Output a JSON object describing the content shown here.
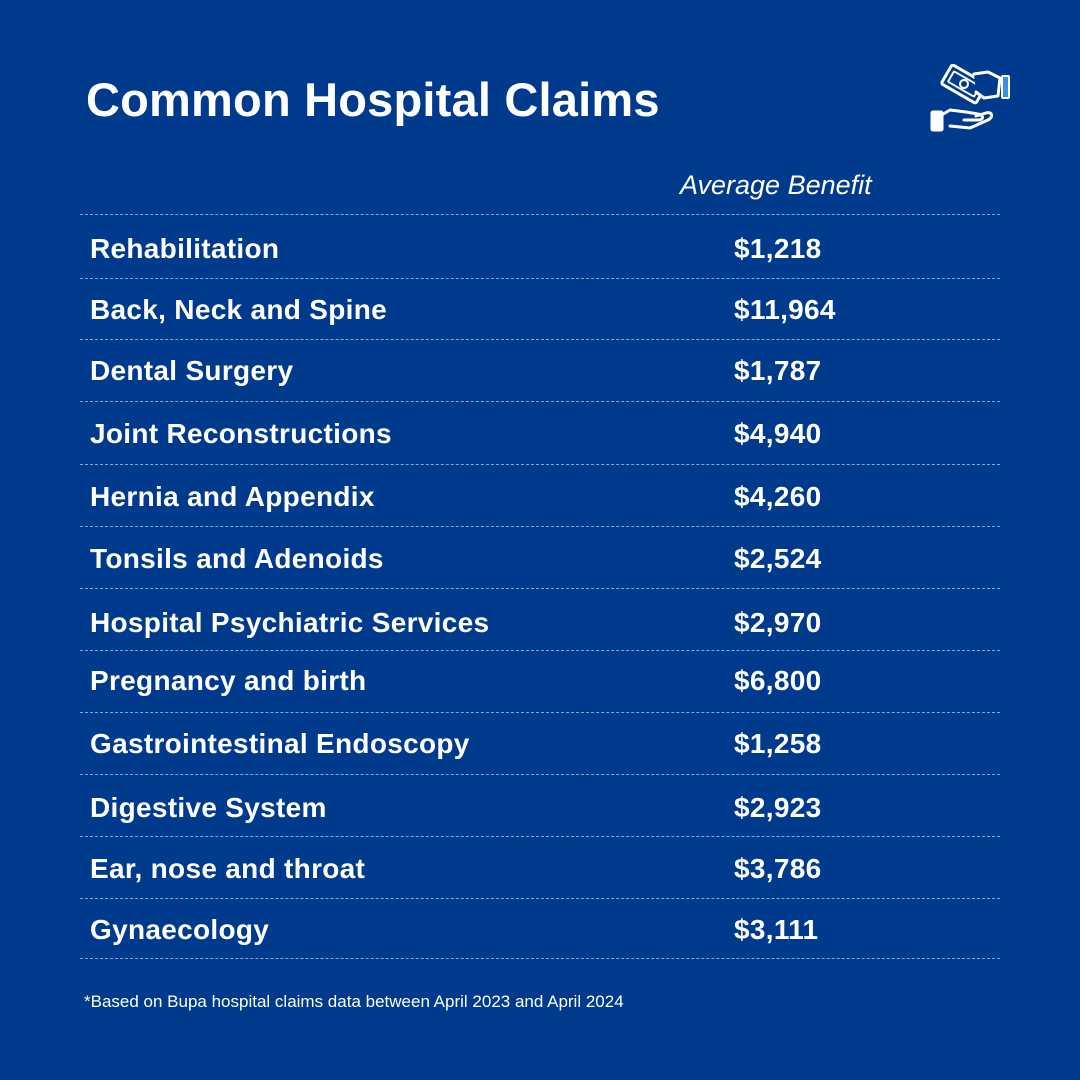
{
  "title": "Common Hospital Claims",
  "column_header": "Average Benefit",
  "icon": "money-in-hand-icon",
  "colors": {
    "background": "#003a8c",
    "text": "#ffffff",
    "icon_accent": "#3a8fe0"
  },
  "chart_data": {
    "type": "table",
    "title": "Common Hospital Claims",
    "columns": [
      "",
      "Average Benefit"
    ],
    "rows": [
      {
        "label": "Rehabilitation",
        "value": "$1,218"
      },
      {
        "label": "Back, Neck and Spine",
        "value": "$11,964"
      },
      {
        "label": "Dental Surgery",
        "value": "$1,787"
      },
      {
        "label": "Joint Reconstructions",
        "value": "$4,940"
      },
      {
        "label": "Hernia and Appendix",
        "value": "$4,260"
      },
      {
        "label": "Tonsils and Adenoids",
        "value": "$2,524"
      },
      {
        "label": "Hospital Psychiatric Services",
        "value": "$2,970"
      },
      {
        "label": "Pregnancy and birth",
        "value": "$6,800"
      },
      {
        "label": "Gastrointestinal Endoscopy",
        "value": "$1,258"
      },
      {
        "label": "Digestive System",
        "value": "$2,923"
      },
      {
        "label": "Ear, nose and throat",
        "value": "$3,786"
      },
      {
        "label": "Gynaecology",
        "value": "$3,111"
      }
    ]
  },
  "footnote": "*Based on Bupa hospital claims data between April 2023 and April 2024"
}
